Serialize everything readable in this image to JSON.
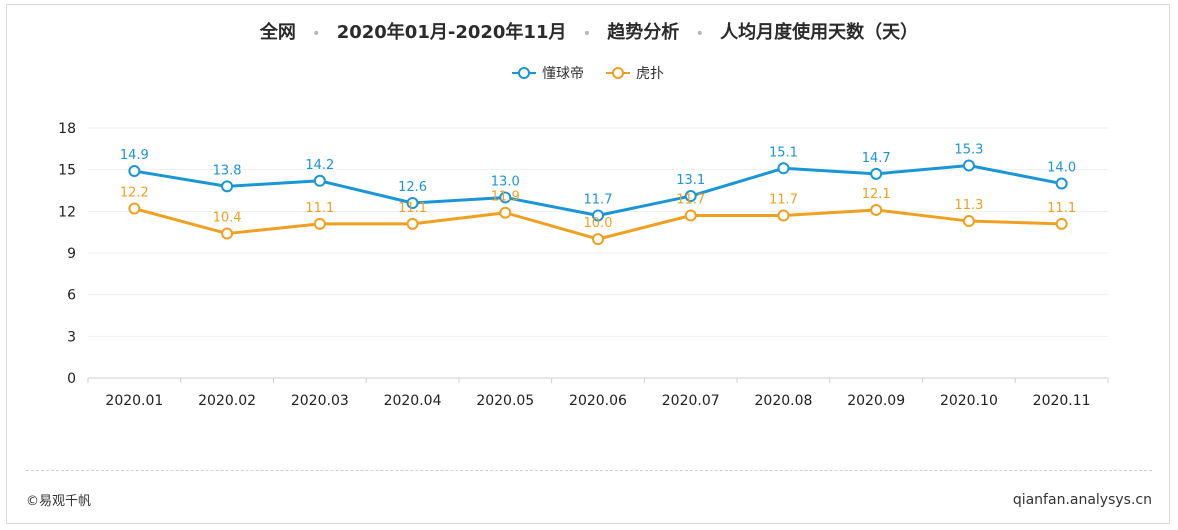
{
  "header": {
    "title_parts": [
      "全网",
      "2020年01月-2020年11月",
      "趋势分析",
      "人均月度使用天数（天）"
    ],
    "separator": "•"
  },
  "colors": {
    "series1": "#1a96d4",
    "series2": "#f0a020",
    "axis": "#cfcfcf",
    "grid": "#eeeeee",
    "text": "#222222"
  },
  "chart_data": {
    "type": "line",
    "title": "全网 • 2020年01月-2020年11月 • 趋势分析 • 人均月度使用天数（天）",
    "categories": [
      "2020.01",
      "2020.02",
      "2020.03",
      "2020.04",
      "2020.05",
      "2020.06",
      "2020.07",
      "2020.08",
      "2020.09",
      "2020.10",
      "2020.11"
    ],
    "series": [
      {
        "name": "懂球帝",
        "color": "#1a96d4",
        "values": [
          14.9,
          13.8,
          14.2,
          12.6,
          13.0,
          11.7,
          13.1,
          15.1,
          14.7,
          15.3,
          14.0
        ]
      },
      {
        "name": "虎扑",
        "color": "#f0a020",
        "values": [
          12.2,
          10.4,
          11.1,
          11.1,
          11.9,
          10.0,
          11.7,
          11.7,
          12.1,
          11.3,
          11.1
        ]
      }
    ],
    "yticks": [
      0,
      3,
      6,
      9,
      12,
      15,
      18
    ],
    "ylim": [
      0,
      18
    ],
    "legend": "top-center",
    "grid": true
  },
  "footer": {
    "copyright": "©易观千帆",
    "site": "qianfan.analysys.cn"
  }
}
